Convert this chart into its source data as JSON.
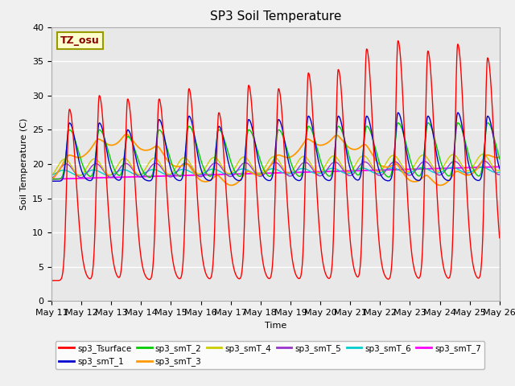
{
  "title": "SP3 Soil Temperature",
  "xlabel": "Time",
  "ylabel": "Soil Temperature (C)",
  "ylim": [
    0,
    40
  ],
  "background_color": "#e8e8e8",
  "fig_facecolor": "#f0f0f0",
  "annotation_text": "TZ_osu",
  "annotation_color": "#8b0000",
  "annotation_bg": "#ffffcc",
  "annotation_border": "#999900",
  "series_colors": {
    "sp3_Tsurface": "#ff0000",
    "sp3_smT_1": "#0000cc",
    "sp3_smT_2": "#00cc00",
    "sp3_smT_3": "#ff9900",
    "sp3_smT_4": "#cccc00",
    "sp3_smT_5": "#9933cc",
    "sp3_smT_6": "#00cccc",
    "sp3_smT_7": "#ff00ff"
  },
  "x_tick_labels": [
    "May 11",
    "May 12",
    "May 13",
    "May 14",
    "May 15",
    "May 16",
    "May 17",
    "May 18",
    "May 19",
    "May 20",
    "May 21",
    "May 22",
    "May 23",
    "May 24",
    "May 25",
    "May 26"
  ],
  "lw": 1.0
}
